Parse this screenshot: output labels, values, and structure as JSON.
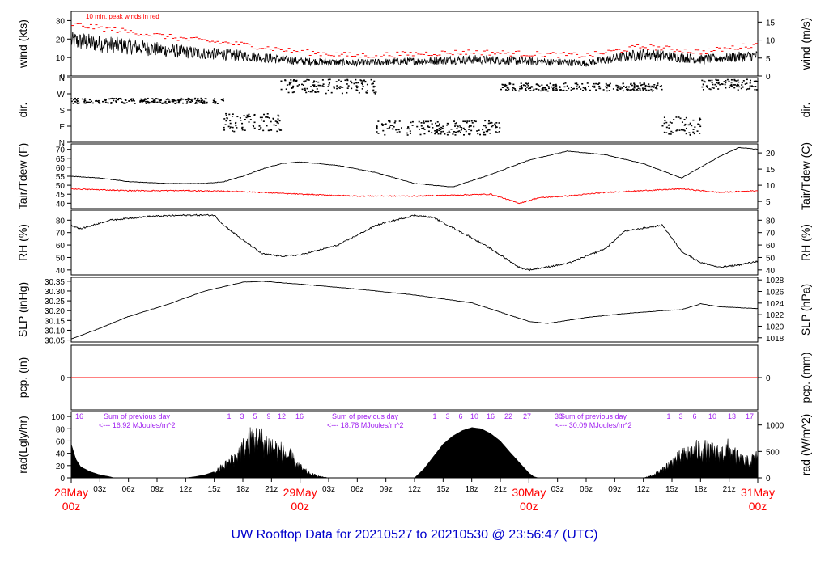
{
  "footer_title": "UW Rooftop Data for 20210527  to  20210530 @ 23:56:47  (UTC)",
  "colors": {
    "peak": "#ff0000",
    "dew": "#ff0000",
    "purple": "#a020f0",
    "title": "#0000cc",
    "date": "#ff0000"
  },
  "x_axis": {
    "ticks": [
      "03z",
      "06z",
      "09z",
      "12z",
      "15z",
      "18z",
      "21z",
      "03z",
      "06z",
      "09z",
      "12z",
      "15z",
      "18z",
      "21z",
      "03z",
      "06z",
      "09z",
      "12z",
      "15z",
      "18z",
      "21z"
    ],
    "day_labels": [
      {
        "date": "28May",
        "time": "00z"
      },
      {
        "date": "29May",
        "time": "00z"
      },
      {
        "date": "30May",
        "time": "00z"
      },
      {
        "date": "31May",
        "time": "00z"
      }
    ]
  },
  "chart_data": [
    {
      "type": "line",
      "panel": "wind",
      "ylabel": "wind (kts)",
      "ylabel_right": "wind (m/s)",
      "annotation": "10 min. peak winds in red",
      "yticks": [
        "0",
        "10",
        "20",
        "30"
      ],
      "yticks_right": [
        "0",
        "5",
        "10",
        "15"
      ],
      "ylim": [
        0,
        35
      ],
      "x_hours": [
        0,
        6,
        12,
        18,
        24,
        30,
        36,
        42,
        48,
        54,
        60,
        66,
        72
      ],
      "series": [
        {
          "values": [
            19,
            16,
            13,
            11,
            8,
            7,
            8,
            9,
            8,
            7,
            12,
            9,
            11
          ]
        },
        {
          "values": [
            28,
            24,
            20,
            17,
            13,
            11,
            12,
            13,
            12,
            11,
            16,
            13,
            17
          ]
        }
      ]
    },
    {
      "type": "scatter",
      "panel": "direction",
      "ylabel": "dir.",
      "ylabel_right": "dir.",
      "yticks": [
        "N",
        "W",
        "S",
        "E",
        "N"
      ],
      "ylim": [
        0,
        360
      ],
      "segments": [
        {
          "x_range": [
            0,
            16
          ],
          "deg_range": [
            215,
            245
          ]
        },
        {
          "x_range": [
            16,
            22
          ],
          "deg_range": [
            60,
            160
          ]
        },
        {
          "x_range": [
            22,
            32
          ],
          "deg_range": [
            270,
            350
          ]
        },
        {
          "x_range": [
            32,
            45
          ],
          "deg_range": [
            40,
            120
          ]
        },
        {
          "x_range": [
            45,
            62
          ],
          "deg_range": [
            285,
            330
          ]
        },
        {
          "x_range": [
            62,
            66
          ],
          "deg_range": [
            40,
            140
          ]
        },
        {
          "x_range": [
            66,
            72
          ],
          "deg_range": [
            290,
            350
          ]
        }
      ]
    },
    {
      "type": "line",
      "panel": "temperature",
      "ylabel": "Tair/Tdew (F)",
      "ylabel_right": "Tair/Tdew (C)",
      "yticks": [
        "40",
        "45",
        "50",
        "55",
        "60",
        "65",
        "70"
      ],
      "yticks_right": [
        "5",
        "10",
        "15",
        "20"
      ],
      "ylim": [
        37,
        73
      ],
      "series": [
        {
          "x_hours": [
            0,
            3,
            6,
            10,
            14,
            16,
            18,
            20,
            22,
            24,
            28,
            32,
            36,
            40,
            44,
            48,
            52,
            56,
            60,
            62,
            64,
            68,
            70,
            72
          ],
          "values": [
            55,
            54,
            52,
            51,
            51,
            52,
            55,
            59,
            62,
            63,
            61,
            57,
            51,
            49,
            56,
            64,
            69,
            67,
            62,
            58,
            54,
            66,
            71,
            70
          ]
        },
        {
          "x_hours": [
            0,
            6,
            12,
            18,
            24,
            30,
            36,
            40,
            44,
            47,
            49,
            52,
            56,
            60,
            64,
            68,
            72
          ],
          "values": [
            48,
            47,
            47,
            46.5,
            45,
            44,
            44,
            44.5,
            45,
            40,
            43,
            44,
            46,
            47,
            48,
            46,
            47
          ]
        }
      ]
    },
    {
      "type": "line",
      "panel": "rh",
      "ylabel": "RH (%)",
      "ylabel_right": "RH (%)",
      "yticks": [
        "40",
        "50",
        "60",
        "70",
        "80"
      ],
      "yticks_right": [
        "40",
        "50",
        "60",
        "70",
        "80"
      ],
      "ylim": [
        36,
        88
      ],
      "series": [
        {
          "x_hours": [
            0,
            1,
            4,
            8,
            12,
            15,
            16,
            18,
            20,
            22,
            24,
            28,
            32,
            36,
            38,
            40,
            42,
            44,
            47,
            48,
            52,
            56,
            58,
            62,
            64,
            66,
            68,
            70,
            72
          ],
          "values": [
            76,
            73,
            80,
            83,
            84,
            84,
            76,
            64,
            53,
            51,
            52,
            60,
            76,
            84,
            82,
            74,
            66,
            57,
            42,
            40,
            45,
            57,
            71,
            76,
            55,
            46,
            42,
            44,
            47
          ]
        }
      ]
    },
    {
      "type": "line",
      "panel": "pressure",
      "ylabel": "SLP (inHg)",
      "ylabel_right": "SLP (hPa)",
      "yticks": [
        "30.05",
        "30.10",
        "30.15",
        "30.20",
        "30.25",
        "30.30",
        "30.35"
      ],
      "yticks_right": [
        "1018",
        "1020",
        "1022",
        "1024",
        "1026",
        "1028"
      ],
      "ylim": [
        30.04,
        30.37
      ],
      "series": [
        {
          "x_hours": [
            0,
            3,
            6,
            10,
            14,
            18,
            20,
            24,
            30,
            36,
            42,
            48,
            50,
            54,
            58,
            62,
            64,
            66,
            68,
            72
          ],
          "values": [
            30.055,
            30.11,
            30.17,
            30.23,
            30.3,
            30.345,
            30.35,
            30.335,
            30.31,
            30.28,
            30.24,
            30.145,
            30.135,
            30.165,
            30.185,
            30.2,
            30.205,
            30.235,
            30.22,
            30.21
          ]
        }
      ]
    },
    {
      "type": "line",
      "panel": "precip",
      "ylabel": "pcp. (in)",
      "ylabel_right": "pcp. (mm)",
      "yticks": [
        "0"
      ],
      "yticks_right": [
        "0"
      ],
      "series": [
        {
          "values": [
            0,
            0
          ]
        }
      ]
    },
    {
      "type": "area",
      "panel": "radiation",
      "ylabel": "rad(Lgly/hr)",
      "ylabel_right": "rad (W/m^2)",
      "yticks": [
        "0",
        "20",
        "40",
        "60",
        "80",
        "100"
      ],
      "yticks_right": [
        "0",
        "500",
        "1000"
      ],
      "ylim": [
        0,
        108
      ],
      "annotations": [
        {
          "lines": [
            "Sum of previous day",
            "<--- 16.92 MJoules/m^2"
          ]
        },
        {
          "lines": [
            "Sum of previous day",
            "<--- 18.78 MJoules/m^2"
          ]
        },
        {
          "lines": [
            "Sum of previous day",
            "<--- 30.09 MJoules/m^2"
          ]
        }
      ],
      "hour_marks": [
        {
          "label": "16"
        },
        {
          "label": "1"
        },
        {
          "label": "3"
        },
        {
          "label": "5"
        },
        {
          "label": "9"
        },
        {
          "label": "12"
        },
        {
          "label": "16"
        },
        {
          "label": "1"
        },
        {
          "label": "3"
        },
        {
          "label": "6"
        },
        {
          "label": "10"
        },
        {
          "label": "16"
        },
        {
          "label": "22"
        },
        {
          "label": "27"
        },
        {
          "label": "30"
        },
        {
          "label": "1"
        },
        {
          "label": "3"
        },
        {
          "label": "6"
        },
        {
          "label": "10"
        },
        {
          "label": "13"
        },
        {
          "label": "17"
        }
      ],
      "series": [
        {
          "x_hours": [
            0,
            0.5,
            1,
            2,
            3,
            4,
            4.5,
            12,
            13,
            14,
            15,
            16,
            17,
            18,
            19,
            20,
            21,
            22,
            23,
            24,
            25,
            26,
            27,
            36,
            37,
            38,
            39,
            40,
            41,
            42,
            43,
            44,
            45,
            46,
            47,
            48,
            48.5,
            49,
            60,
            61,
            62,
            63,
            64,
            65,
            66,
            67,
            68,
            69,
            70,
            71,
            72
          ],
          "values": [
            55,
            30,
            18,
            10,
            5,
            2,
            0,
            0,
            2,
            5,
            10,
            22,
            35,
            55,
            75,
            70,
            60,
            50,
            40,
            20,
            8,
            3,
            0,
            0,
            15,
            35,
            55,
            68,
            77,
            82,
            80,
            72,
            60,
            42,
            25,
            8,
            2,
            0,
            0,
            5,
            15,
            30,
            40,
            48,
            55,
            50,
            45,
            55,
            35,
            30,
            40
          ]
        }
      ]
    }
  ]
}
